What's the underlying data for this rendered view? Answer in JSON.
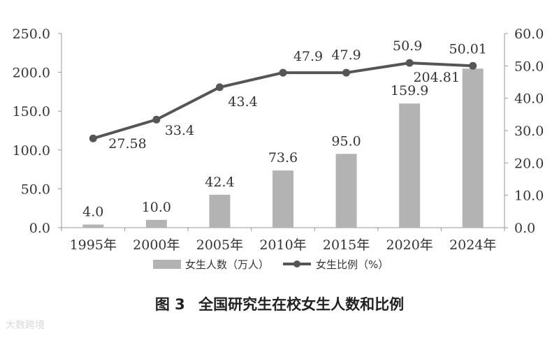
{
  "chart_data": {
    "type": "bar+line",
    "categories": [
      "1995年",
      "2000年",
      "2005年",
      "2010年",
      "2015年",
      "2020年",
      "2024年"
    ],
    "series": [
      {
        "name": "女生人数（万人）",
        "type": "bar",
        "axis": "left",
        "color": "#b3b3b3",
        "values": [
          4.0,
          10.0,
          42.4,
          73.6,
          95.0,
          159.9,
          204.81
        ],
        "labels": [
          "4.0",
          "10.0",
          "42.4",
          "73.6",
          "95.0",
          "159.9",
          "204.81"
        ]
      },
      {
        "name": "女生比例（%）",
        "type": "line",
        "axis": "right",
        "color": "#555555",
        "values": [
          27.58,
          33.4,
          43.4,
          47.9,
          47.9,
          50.9,
          50.01
        ],
        "labels": [
          "27.58",
          "33.4",
          "43.4",
          "47.9",
          "47.9",
          "50.9",
          "50.01"
        ]
      }
    ],
    "y_left": {
      "ylim": [
        0,
        250
      ],
      "ticks": [
        "0.0",
        "50.0",
        "100.0",
        "150.0",
        "200.0",
        "250.0"
      ]
    },
    "y_right": {
      "ylim": [
        0,
        60
      ],
      "ticks": [
        "0.0",
        "10.0",
        "20.0",
        "30.0",
        "40.0",
        "50.0",
        "60.0"
      ]
    },
    "grid": false,
    "legend_position": "bottom"
  },
  "caption": {
    "figure": "图 3",
    "title": "全国研究生在校女生人数和比例"
  },
  "watermark": "大数跨境"
}
